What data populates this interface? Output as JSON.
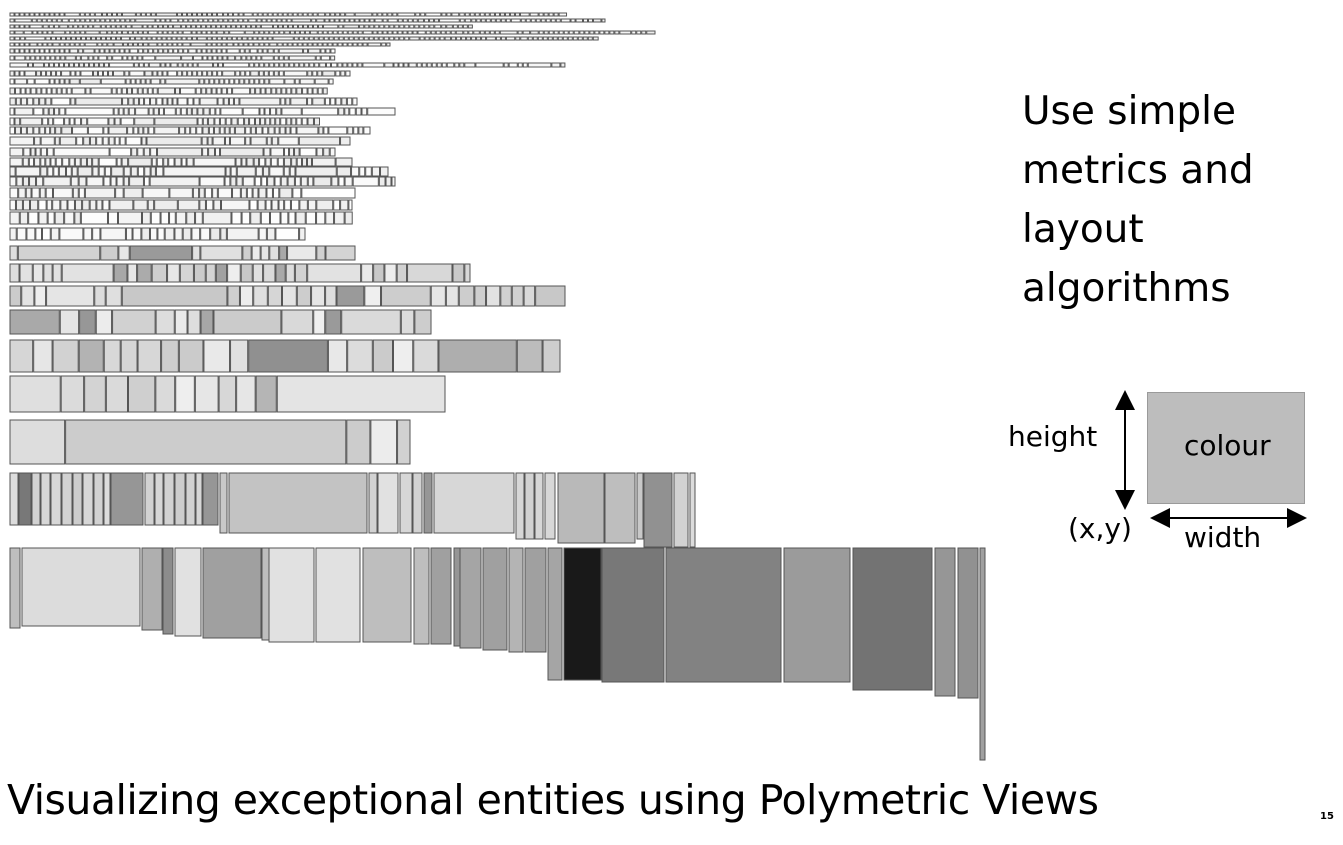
{
  "slide": {
    "side_text_lines": [
      "Use simple",
      "metrics and",
      "layout",
      "algorithms"
    ],
    "caption": "Visualizing exceptional entities using Polymetric Views",
    "page_number": "15"
  },
  "legend": {
    "height_label": "height",
    "colour_label": "colour",
    "xy_label": "(x,y)",
    "width_label": "width",
    "box_color": "#bdbdbd"
  },
  "visualization": {
    "type": "polymetric-view",
    "box_border_color": "#555555"
  }
}
